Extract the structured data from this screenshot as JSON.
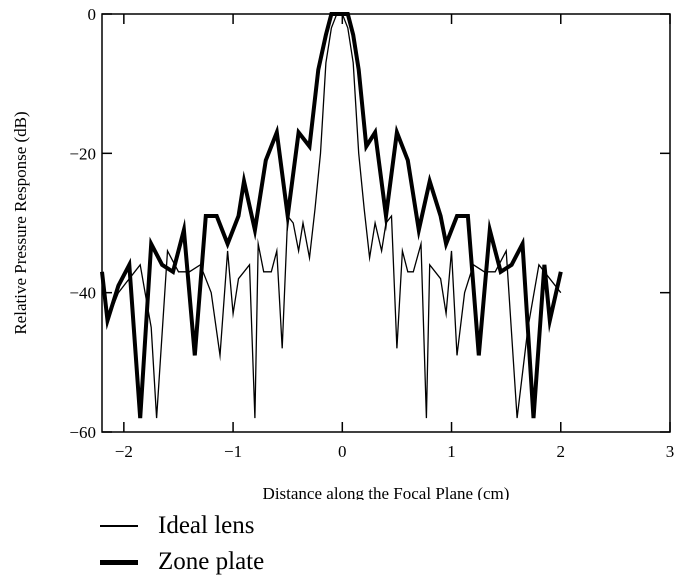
{
  "chart_data": {
    "type": "line",
    "xlabel": "Distance along the Focal Plane (cm)",
    "ylabel": "Relative Pressure Response (dB)",
    "xlim": [
      -2.2,
      3
    ],
    "ylim": [
      -60,
      0
    ],
    "x_ticks": [
      -2,
      -1,
      0,
      1,
      2,
      3
    ],
    "x_tick_labels": [
      "−2",
      "−1",
      "0",
      "1",
      "2",
      "3"
    ],
    "y_ticks": [
      0,
      -20,
      -40,
      -60
    ],
    "y_tick_labels": [
      "0",
      "−20",
      "−40",
      "−60"
    ],
    "grid": false,
    "legend_position": "bottom-left",
    "series": [
      {
        "name": "Ideal lens",
        "style": "thin",
        "x": [
          -2.2,
          -2.15,
          -2.05,
          -1.95,
          -1.85,
          -1.75,
          -1.7,
          -1.6,
          -1.5,
          -1.4,
          -1.3,
          -1.2,
          -1.12,
          -1.05,
          -1.0,
          -0.95,
          -0.9,
          -0.85,
          -0.8,
          -0.77,
          -0.72,
          -0.65,
          -0.6,
          -0.55,
          -0.5,
          -0.45,
          -0.4,
          -0.36,
          -0.3,
          -0.25,
          -0.2,
          -0.15,
          -0.1,
          -0.05,
          0,
          0.05,
          0.1,
          0.15,
          0.2,
          0.25,
          0.3,
          0.36,
          0.4,
          0.45,
          0.5,
          0.55,
          0.6,
          0.65,
          0.72,
          0.77,
          0.8,
          0.85,
          0.9,
          0.95,
          1.0,
          1.05,
          1.12,
          1.2,
          1.3,
          1.4,
          1.5,
          1.6,
          1.7,
          1.8,
          1.9,
          2.0
        ],
        "y": [
          -38,
          -44,
          -40,
          -38,
          -36,
          -45,
          -58,
          -34,
          -37,
          -37,
          -36,
          -40,
          -49,
          -34,
          -43,
          -38,
          -37,
          -36,
          -58,
          -33,
          -37,
          -37,
          -34,
          -48,
          -29,
          -30,
          -34,
          -30,
          -35,
          -28,
          -20,
          -7,
          -2,
          0,
          0,
          -2,
          -7,
          -20,
          -28,
          -35,
          -30,
          -34,
          -30,
          -29,
          -48,
          -34,
          -37,
          -37,
          -33,
          -58,
          -36,
          -37,
          -38,
          -43,
          -34,
          -49,
          -40,
          -36,
          -37,
          -37,
          -34,
          -58,
          -45,
          -36,
          -38,
          -40
        ]
      },
      {
        "name": "Zone plate",
        "style": "thick",
        "x": [
          -2.2,
          -2.15,
          -2.05,
          -1.95,
          -1.85,
          -1.75,
          -1.65,
          -1.55,
          -1.45,
          -1.35,
          -1.25,
          -1.15,
          -1.05,
          -0.95,
          -0.9,
          -0.8,
          -0.7,
          -0.6,
          -0.5,
          -0.4,
          -0.3,
          -0.22,
          -0.15,
          -0.1,
          -0.05,
          0,
          0.05,
          0.1,
          0.15,
          0.22,
          0.3,
          0.4,
          0.5,
          0.6,
          0.7,
          0.8,
          0.9,
          0.95,
          1.05,
          1.15,
          1.25,
          1.35,
          1.45,
          1.55,
          1.65,
          1.75,
          1.85,
          1.9,
          2.0
        ],
        "y": [
          -37,
          -44,
          -39,
          -36,
          -58,
          -33,
          -36,
          -37,
          -31,
          -49,
          -29,
          -29,
          -33,
          -29,
          -24,
          -31,
          -21,
          -17,
          -29,
          -17,
          -19,
          -8,
          -3,
          0,
          0,
          0,
          0,
          -3,
          -8,
          -19,
          -17,
          -29,
          -17,
          -21,
          -31,
          -24,
          -29,
          -33,
          -29,
          -29,
          -49,
          -31,
          -37,
          -36,
          -33,
          -58,
          -36,
          -44,
          -37
        ]
      }
    ]
  }
}
